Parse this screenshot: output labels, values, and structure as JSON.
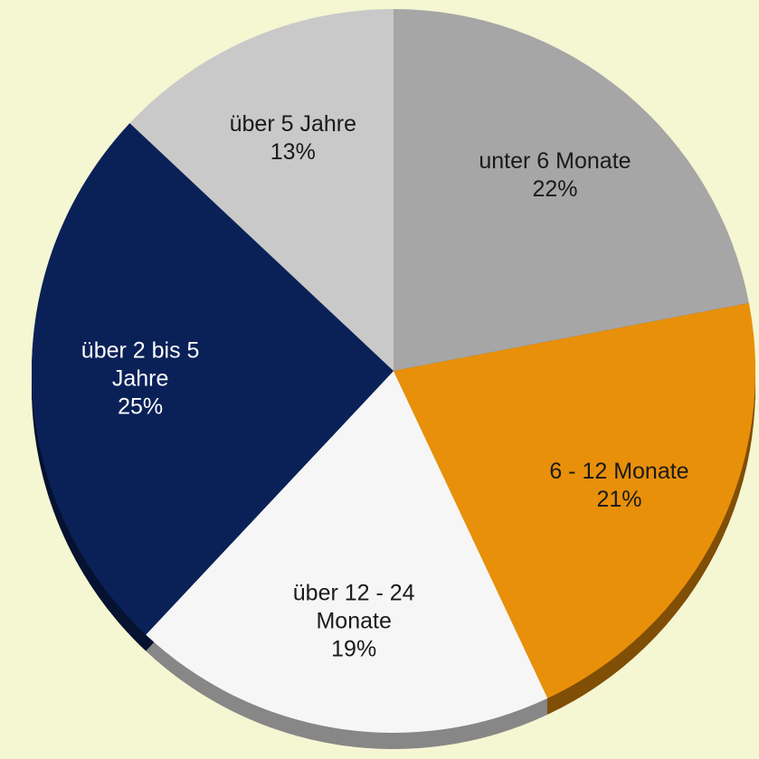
{
  "chart_data": {
    "type": "pie",
    "categories": [
      "unter 6 Monate",
      "6 - 12 Monate",
      "über 12 - 24 Monate",
      "über 2 bis 5 Jahre",
      "über 5 Jahre"
    ],
    "values": [
      22,
      21,
      19,
      25,
      13
    ],
    "value_labels": [
      "22%",
      "21%",
      "19%",
      "25%",
      "13%"
    ],
    "colors": [
      "#a6a6a6",
      "#e8900a",
      "#f6f6f6",
      "#0a2158",
      "#c9c9c9"
    ]
  }
}
